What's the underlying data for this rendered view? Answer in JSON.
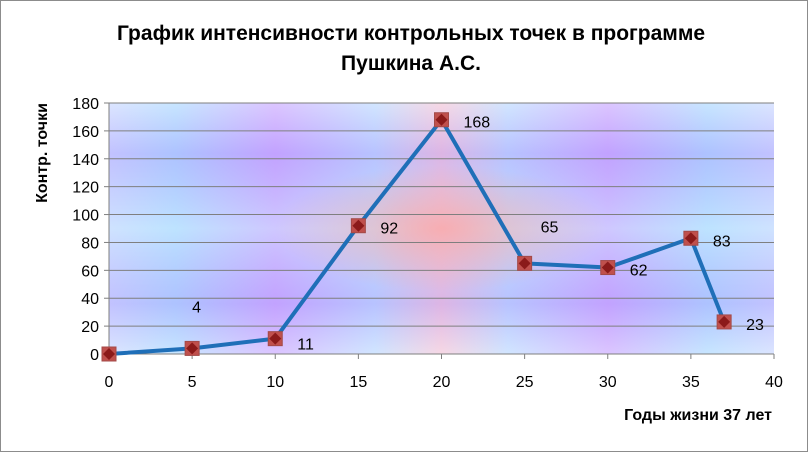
{
  "title_lines": [
    "График интенсивности контрольных точек в программе",
    "Пушкина А.С."
  ],
  "chart_data": {
    "type": "scatter",
    "title": "График интенсивности контрольных точек в программе Пушкина А.С.",
    "xlabel": "Годы жизни 37 лет",
    "ylabel": "Контр. точки",
    "xlim": [
      0,
      40
    ],
    "ylim": [
      0,
      180
    ],
    "x_ticks": [
      0,
      5,
      10,
      15,
      20,
      25,
      30,
      35,
      40
    ],
    "y_ticks": [
      0,
      20,
      40,
      60,
      80,
      100,
      120,
      140,
      160,
      180
    ],
    "grid": "horizontal",
    "series": [
      {
        "x": [
          0,
          5,
          10,
          15,
          20,
          25,
          30,
          35,
          37
        ],
        "y": [
          0,
          4,
          11,
          92,
          168,
          65,
          62,
          83,
          23
        ],
        "data_labels": [
          "",
          "4",
          "11",
          "92",
          "168",
          "65",
          "62",
          "83",
          "23"
        ],
        "line_color": "#1f6fb8",
        "marker_color": "#c0504d",
        "marker_inner_color": "#8b1a1a"
      }
    ]
  }
}
